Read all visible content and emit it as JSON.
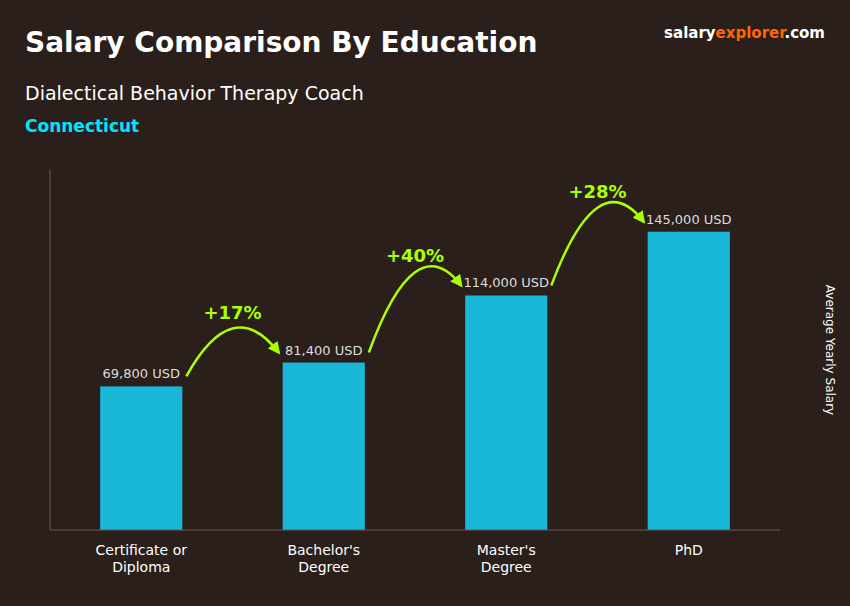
{
  "chart_data": {
    "type": "bar",
    "title": "Salary Comparison By Education",
    "subtitle": "Dialectical Behavior Therapy Coach",
    "location": "Connecticut",
    "location_color": "#00e5ff",
    "brand": [
      {
        "text": "salary",
        "color": "#ffffff"
      },
      {
        "text": "explorer",
        "color": "#ff6600"
      },
      {
        "text": ".com",
        "color": "#ffffff"
      }
    ],
    "ylabel": "Average Yearly Salary",
    "categories": [
      "Certificate or\nDiploma",
      "Bachelor's\nDegree",
      "Master's\nDegree",
      "PhD"
    ],
    "values": [
      69800,
      81400,
      114000,
      145000
    ],
    "value_labels": [
      "69,800 USD",
      "81,400 USD",
      "114,000 USD",
      "145,000 USD"
    ],
    "data_labels": true,
    "color": "#1ab8d8",
    "annotations": [
      "+17%",
      "+40%",
      "+28%"
    ],
    "annotation_color": "#aaff00",
    "ylim": [
      0,
      175000
    ],
    "tick_labels": "x",
    "grid": false
  }
}
